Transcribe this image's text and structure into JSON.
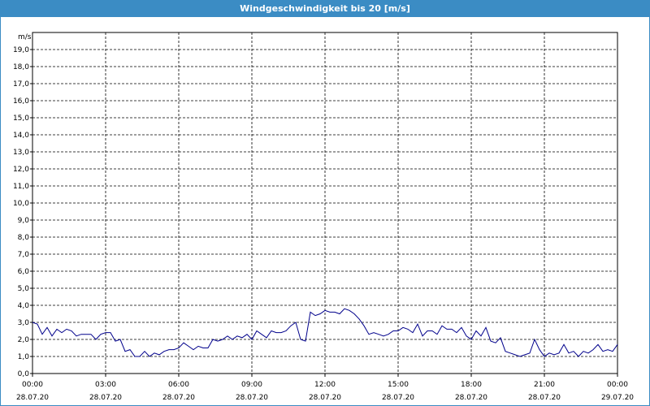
{
  "window": {
    "title": "Windgeschwindigkeit bis 20 [m/s]"
  },
  "colors": {
    "titlebar": "#3b8cc4",
    "line": "#00008b",
    "grid": "#000000"
  },
  "chart_data": {
    "type": "line",
    "title": "Windgeschwindigkeit bis 20 [m/s]",
    "ylabel": "m/s",
    "ylim": [
      0,
      20
    ],
    "xlim_hours": [
      0,
      24
    ],
    "grid": true,
    "y_ticks": [
      "0,0",
      "1,0",
      "2,0",
      "3,0",
      "4,0",
      "5,0",
      "6,0",
      "7,0",
      "8,0",
      "9,0",
      "10,0",
      "11,0",
      "12,0",
      "13,0",
      "14,0",
      "15,0",
      "16,0",
      "17,0",
      "18,0",
      "19,0"
    ],
    "x_ticks": [
      {
        "time": "00:00",
        "date": "28.07.20"
      },
      {
        "time": "03:00",
        "date": "28.07.20"
      },
      {
        "time": "06:00",
        "date": "28.07.20"
      },
      {
        "time": "09:00",
        "date": "28.07.20"
      },
      {
        "time": "12:00",
        "date": "28.07.20"
      },
      {
        "time": "15:00",
        "date": "28.07.20"
      },
      {
        "time": "18:00",
        "date": "28.07.20"
      },
      {
        "time": "21:00",
        "date": "28.07.20"
      },
      {
        "time": "00:00",
        "date": "29.07.20"
      }
    ],
    "series": [
      {
        "x_hours": [
          0,
          0.2,
          0.4,
          0.6,
          0.8,
          1.0,
          1.2,
          1.4,
          1.6,
          1.8,
          2.0,
          2.2,
          2.4,
          2.6,
          2.8,
          3.0,
          3.2,
          3.4,
          3.6,
          3.8,
          4.0,
          4.2,
          4.4,
          4.6,
          4.8,
          5.0,
          5.2,
          5.4,
          5.6,
          5.8,
          6.0,
          6.2,
          6.4,
          6.6,
          6.8,
          7.0,
          7.2,
          7.4,
          7.6,
          7.8,
          8.0,
          8.2,
          8.4,
          8.6,
          8.8,
          9.0,
          9.2,
          9.4,
          9.6,
          9.8,
          10.0,
          10.2,
          10.4,
          10.6,
          10.8,
          11.0,
          11.2,
          11.4,
          11.6,
          11.8,
          12.0,
          12.2,
          12.4,
          12.6,
          12.8,
          13.0,
          13.2,
          13.4,
          13.6,
          13.8,
          14.0,
          14.2,
          14.4,
          14.6,
          14.8,
          15.0,
          15.2,
          15.4,
          15.6,
          15.8,
          16.0,
          16.2,
          16.4,
          16.6,
          16.8,
          17.0,
          17.2,
          17.4,
          17.6,
          17.8,
          18.0,
          18.2,
          18.4,
          18.6,
          18.8,
          19.0,
          19.2,
          19.4,
          19.6,
          19.8,
          20.0,
          20.2,
          20.4,
          20.6,
          20.8,
          21.0,
          21.2,
          21.4,
          21.6,
          21.8,
          22.0,
          22.2,
          22.4,
          22.6,
          22.8,
          23.0,
          23.2,
          23.4,
          23.6,
          23.8,
          24.0
        ],
        "values": [
          3.0,
          2.9,
          2.3,
          2.7,
          2.2,
          2.6,
          2.4,
          2.6,
          2.5,
          2.2,
          2.3,
          2.3,
          2.3,
          2.0,
          2.3,
          2.4,
          2.4,
          1.9,
          2.0,
          1.3,
          1.4,
          1.0,
          1.0,
          1.3,
          1.0,
          1.2,
          1.1,
          1.3,
          1.4,
          1.4,
          1.5,
          1.8,
          1.6,
          1.4,
          1.6,
          1.5,
          1.5,
          2.0,
          1.9,
          2.0,
          2.2,
          2.0,
          2.2,
          2.1,
          2.3,
          2.0,
          2.5,
          2.3,
          2.1,
          2.5,
          2.4,
          2.4,
          2.5,
          2.8,
          3.0,
          2.0,
          1.9,
          3.6,
          3.4,
          3.5,
          3.7,
          3.6,
          3.6,
          3.5,
          3.8,
          3.7,
          3.5,
          3.2,
          2.8,
          2.3,
          2.4,
          2.3,
          2.2,
          2.3,
          2.5,
          2.5,
          2.7,
          2.6,
          2.4,
          2.9,
          2.2,
          2.5,
          2.5,
          2.3,
          2.8,
          2.6,
          2.6,
          2.4,
          2.7,
          2.2,
          2.0,
          2.5,
          2.2,
          2.7,
          1.9,
          1.8,
          2.1,
          1.3,
          1.2,
          1.1,
          1.0,
          1.1,
          1.2,
          2.0,
          1.4,
          1.0,
          1.2,
          1.1,
          1.2,
          1.7,
          1.2,
          1.3,
          1.0,
          1.3,
          1.2,
          1.4,
          1.7,
          1.3,
          1.4,
          1.3,
          1.7
        ]
      }
    ]
  }
}
